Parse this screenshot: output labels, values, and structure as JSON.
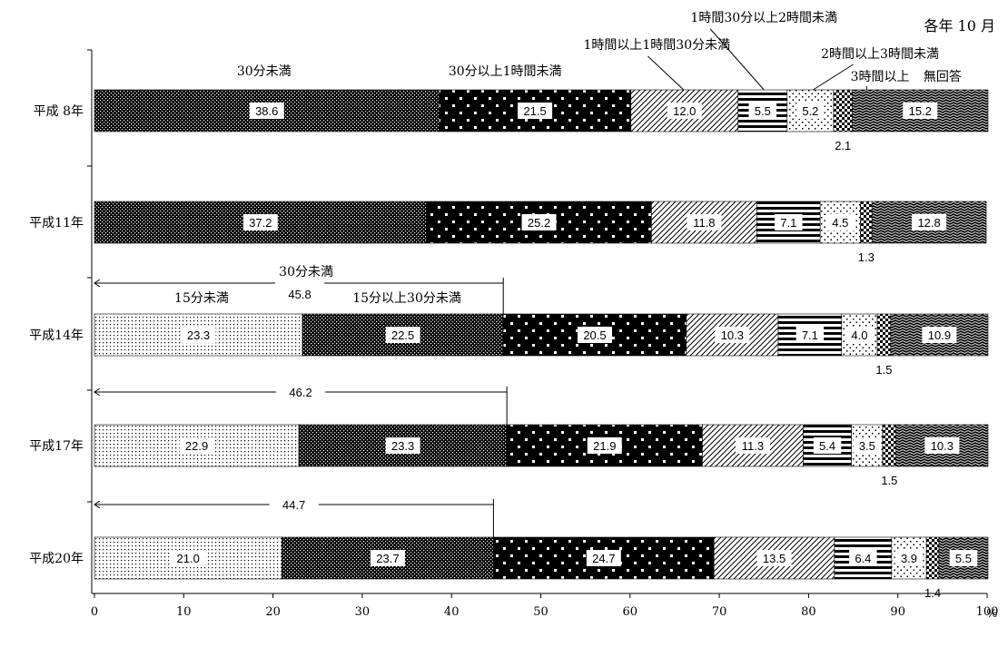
{
  "note": "各年 10 月",
  "unit": "%",
  "chart_data": {
    "type": "bar",
    "orientation": "horizontal",
    "stacked": true,
    "xlim": [
      0,
      100
    ],
    "xticks": [
      "0",
      "10",
      "20",
      "30",
      "40",
      "50",
      "60",
      "70",
      "80",
      "90",
      "100"
    ],
    "categories": [
      "平成 8年",
      "平成11年",
      "平成14年",
      "平成17年",
      "平成20年"
    ],
    "series": [
      {
        "name": "15分未満",
        "pattern": "fine-dots",
        "values": [
          null,
          null,
          23.3,
          22.9,
          21.0
        ],
        "labels": [
          "",
          "",
          "23.3",
          "22.9",
          "21.0"
        ]
      },
      {
        "name": "15分以上30分未満",
        "pattern": "dense-dots",
        "values": [
          null,
          null,
          22.5,
          23.3,
          23.7
        ],
        "labels": [
          "",
          "",
          "22.5",
          "23.3",
          "23.7"
        ]
      },
      {
        "name": "30分未満",
        "pattern": "dense-dots",
        "values": [
          38.6,
          37.2,
          null,
          null,
          null
        ],
        "labels": [
          "38.6",
          "37.2",
          "",
          "",
          ""
        ]
      },
      {
        "name": "30分以上1時間未満",
        "pattern": "black-white-dots",
        "values": [
          21.5,
          25.2,
          20.5,
          21.9,
          24.7
        ],
        "labels": [
          "21.5",
          "25.2",
          "20.5",
          "21.9",
          "24.7"
        ]
      },
      {
        "name": "1時間以上1時間30分未満",
        "pattern": "diagonal",
        "values": [
          12.0,
          11.8,
          10.3,
          11.3,
          13.5
        ],
        "labels": [
          "12.0",
          "11.8",
          "10.3",
          "11.3",
          "13.5"
        ]
      },
      {
        "name": "1時間30分以上2時間未満",
        "pattern": "horizontal",
        "values": [
          5.5,
          7.1,
          7.1,
          5.4,
          6.4
        ],
        "labels": [
          "5.5",
          "7.1",
          "7.1",
          "5.4",
          "6.4"
        ]
      },
      {
        "name": "2時間以上3時間未満",
        "pattern": "sparse-dots",
        "values": [
          5.2,
          4.5,
          4.0,
          3.5,
          3.9
        ],
        "labels": [
          "5.2",
          "4.5",
          "4.0",
          "3.5",
          "3.9"
        ]
      },
      {
        "name": "3時間以上",
        "pattern": "checker",
        "values": [
          2.1,
          1.3,
          1.5,
          1.5,
          1.4
        ],
        "labels": [
          "2.1",
          "1.3",
          "1.5",
          "1.5",
          "1.4"
        ]
      },
      {
        "name": "無回答",
        "pattern": "wave",
        "values": [
          15.2,
          12.8,
          10.9,
          10.3,
          5.5
        ],
        "labels": [
          "15.2",
          "12.8",
          "10.9",
          "10.3",
          "5.5"
        ]
      }
    ],
    "legend_annotations": {
      "s30": "30分未満",
      "s30_60": "30分以上1時間未満",
      "s60_90": "1時間以上1時間30分未満",
      "s90_120": "1時間30分以上2時間未満",
      "s120_180": "2時間以上3時間未満",
      "s180": "3時間以上",
      "na": "無回答"
    },
    "spans": [
      {
        "label": "30分未満",
        "value": "45.8",
        "from": 0,
        "to": 45.8,
        "category": "平成14年"
      },
      {
        "label": "",
        "value": "46.2",
        "from": 0,
        "to": 46.2,
        "category": "平成17年"
      },
      {
        "label": "",
        "value": "44.7",
        "from": 0,
        "to": 44.7,
        "category": "平成20年"
      }
    ],
    "subgroup_labels": {
      "lt15": "15分未満",
      "s15_30": "15分以上30分未満"
    }
  }
}
